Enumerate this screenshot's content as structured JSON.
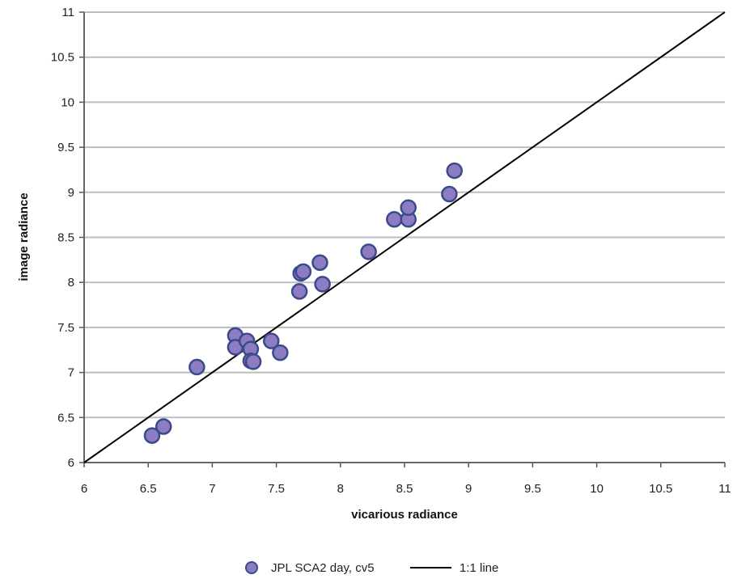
{
  "chart_data": {
    "type": "scatter",
    "xlabel": "vicarious radiance",
    "ylabel": "image radiance",
    "xlim": [
      6,
      11
    ],
    "ylim": [
      6,
      11
    ],
    "x_ticks": [
      "6",
      "6.5",
      "7",
      "7.5",
      "8",
      "8.5",
      "9",
      "9.5",
      "10",
      "10.5",
      "11"
    ],
    "y_ticks": [
      "6",
      "6.5",
      "7",
      "7.5",
      "8",
      "8.5",
      "9",
      "9.5",
      "10",
      "10.5",
      "11"
    ],
    "grid": "horizontal",
    "legend_position": "bottom",
    "series": [
      {
        "name": "JPL SCA2 day, cv5",
        "type": "scatter",
        "color": "#8e7cc3",
        "edge_color": "#3b4a8a",
        "points": [
          [
            6.53,
            6.3
          ],
          [
            6.62,
            6.4
          ],
          [
            6.88,
            7.06
          ],
          [
            7.18,
            7.41
          ],
          [
            7.18,
            7.28
          ],
          [
            7.27,
            7.35
          ],
          [
            7.3,
            7.26
          ],
          [
            7.3,
            7.13
          ],
          [
            7.32,
            7.12
          ],
          [
            7.46,
            7.35
          ],
          [
            7.53,
            7.22
          ],
          [
            7.68,
            7.9
          ],
          [
            7.69,
            8.1
          ],
          [
            7.71,
            8.12
          ],
          [
            7.84,
            8.22
          ],
          [
            7.86,
            7.98
          ],
          [
            8.22,
            8.34
          ],
          [
            8.42,
            8.7
          ],
          [
            8.53,
            8.7
          ],
          [
            8.53,
            8.83
          ],
          [
            8.85,
            8.98
          ],
          [
            8.89,
            9.24
          ]
        ]
      },
      {
        "name": "1:1 line",
        "type": "line",
        "color": "#000000",
        "points": [
          [
            6,
            6
          ],
          [
            11,
            11
          ]
        ]
      }
    ]
  }
}
